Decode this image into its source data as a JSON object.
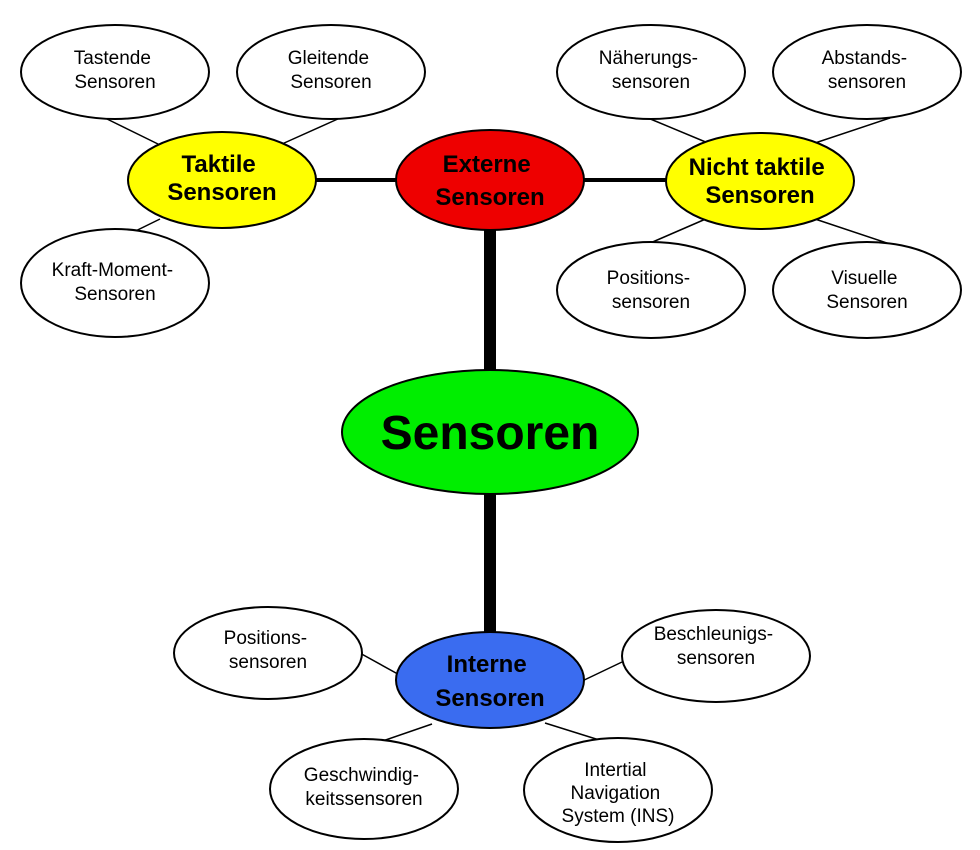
{
  "colors": {
    "root": "#00ee00",
    "external": "#ee0000",
    "internal": "#3a6cf0",
    "tactile_group": "#ffff00",
    "nontactile_group": "#ffff00",
    "leaf": "#ffffff"
  },
  "nodes": {
    "root": {
      "lines": [
        "Sensoren"
      ]
    },
    "external": {
      "lines": [
        "Externe",
        "Sensoren"
      ]
    },
    "internal": {
      "lines": [
        "Interne",
        "Sensoren"
      ]
    },
    "tactile": {
      "lines": [
        "Taktile",
        "Sensoren"
      ]
    },
    "nontactile": {
      "lines": [
        "Nicht taktile",
        "Sensoren"
      ]
    },
    "tastende": {
      "lines": [
        "Tastende",
        "Sensoren"
      ]
    },
    "gleitende": {
      "lines": [
        "Gleitende",
        "Sensoren"
      ]
    },
    "kraft_moment": {
      "lines": [
        "Kraft-Moment-",
        "Sensoren"
      ]
    },
    "naeherung": {
      "lines": [
        "Näherungs-",
        "sensoren"
      ]
    },
    "abstand": {
      "lines": [
        "Abstands-",
        "sensoren"
      ]
    },
    "position_ext": {
      "lines": [
        "Positions-",
        "sensoren"
      ]
    },
    "visuell": {
      "lines": [
        "Visuelle",
        "Sensoren"
      ]
    },
    "position_int": {
      "lines": [
        "Positions-",
        "sensoren"
      ]
    },
    "beschleunigung": {
      "lines": [
        "Beschleunigs-",
        "sensoren"
      ]
    },
    "geschwindigkeit": {
      "lines": [
        "Geschwindig-",
        "keitssensoren"
      ]
    },
    "ins": {
      "lines": [
        "Intertial",
        "Navigation",
        "System (INS)"
      ]
    }
  }
}
